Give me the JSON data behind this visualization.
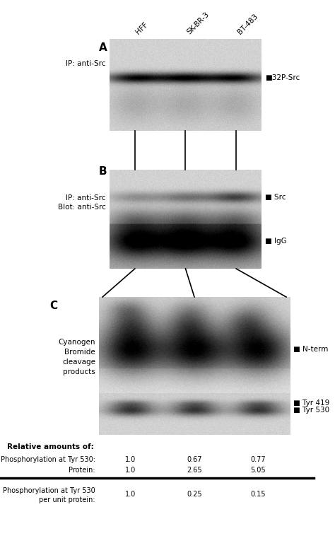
{
  "fig_width": 4.74,
  "fig_height": 7.75,
  "bg_color": "#ffffff",
  "panel_A_label": "A",
  "panel_B_label": "B",
  "panel_C_label": "C",
  "panel_A_ip": "IP: anti-Src",
  "panel_B_ip_line1": "IP: anti-Src",
  "panel_B_ip_line2": "Blot: anti-Src",
  "panel_C_side_label": "Cyanogen\nBromide\ncleavage\nproducts",
  "col_labels": [
    "HFF",
    "SK-BR-3",
    "BT-483"
  ],
  "label_32P_Src": "■32P-Src",
  "label_Src": "■ Src",
  "label_IgG": "■ IgG",
  "label_Nterm": "■ N-term",
  "label_Tyr419": "■ Tyr 419",
  "label_Tyr530": "■ Tyr 530",
  "table_header": "Relative amounts of:",
  "row1_label": "Phosphorylation at Tyr 530:",
  "row1_values": [
    "1.0",
    "0.67",
    "0.77"
  ],
  "row2_label": "Protein:",
  "row2_values": [
    "1.0",
    "2.65",
    "5.05"
  ],
  "row3_label": "Phosphorylation at Tyr 530\nper unit protein:",
  "row3_values": [
    "1.0",
    "0.25",
    "0.15"
  ]
}
